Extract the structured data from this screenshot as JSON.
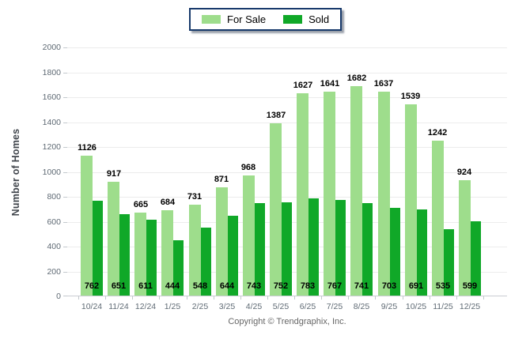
{
  "footer": {
    "text": "Copyright © Trendgraphix, Inc."
  },
  "chart_data": {
    "type": "bar",
    "title": "",
    "xlabel": "",
    "ylabel": "Number of Homes",
    "ylim": [
      0,
      2000
    ],
    "ytick_step": 200,
    "grid": true,
    "legend_position": "top-center",
    "categories": [
      "10/24",
      "11/24",
      "12/24",
      "1/25",
      "2/25",
      "3/25",
      "4/25",
      "5/25",
      "6/25",
      "7/25",
      "8/25",
      "9/25",
      "10/25",
      "11/25",
      "12/25"
    ],
    "series": [
      {
        "name": "For Sale",
        "color": "#9edd8c",
        "label_position": "above-bar",
        "values": [
          1126,
          917,
          665,
          684,
          731,
          871,
          968,
          1387,
          1627,
          1641,
          1682,
          1637,
          1539,
          1242,
          924
        ]
      },
      {
        "name": "Sold",
        "color": "#10a828",
        "label_position": "inside-bottom",
        "values": [
          762,
          651,
          611,
          444,
          548,
          644,
          743,
          752,
          783,
          767,
          741,
          703,
          691,
          535,
          599
        ]
      }
    ]
  }
}
